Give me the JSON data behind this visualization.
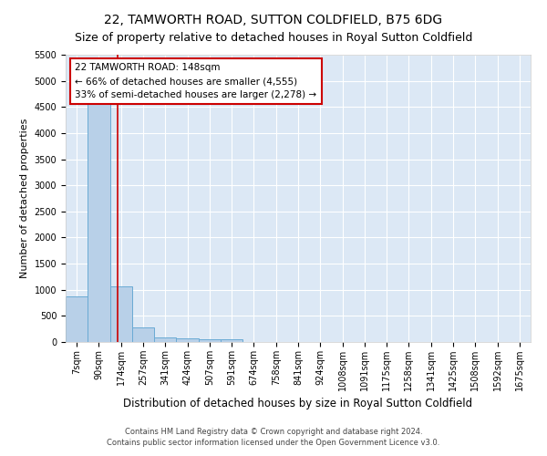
{
  "title": "22, TAMWORTH ROAD, SUTTON COLDFIELD, B75 6DG",
  "subtitle": "Size of property relative to detached houses in Royal Sutton Coldfield",
  "xlabel": "Distribution of detached houses by size in Royal Sutton Coldfield",
  "ylabel": "Number of detached properties",
  "footnote1": "Contains HM Land Registry data © Crown copyright and database right 2024.",
  "footnote2": "Contains public sector information licensed under the Open Government Licence v3.0.",
  "bar_labels": [
    "7sqm",
    "90sqm",
    "174sqm",
    "257sqm",
    "341sqm",
    "424sqm",
    "507sqm",
    "591sqm",
    "674sqm",
    "758sqm",
    "841sqm",
    "924sqm",
    "1008sqm",
    "1091sqm",
    "1175sqm",
    "1258sqm",
    "1341sqm",
    "1425sqm",
    "1508sqm",
    "1592sqm",
    "1675sqm"
  ],
  "bar_values": [
    880,
    4555,
    1060,
    280,
    90,
    75,
    55,
    55,
    0,
    0,
    0,
    0,
    0,
    0,
    0,
    0,
    0,
    0,
    0,
    0,
    0
  ],
  "bar_color": "#b8d0e8",
  "bar_edge_color": "#6aaad4",
  "vline_x": 1.85,
  "vline_color": "#cc0000",
  "annotation_title": "22 TAMWORTH ROAD: 148sqm",
  "annotation_line1": "← 66% of detached houses are smaller (4,555)",
  "annotation_line2": "33% of semi-detached houses are larger (2,278) →",
  "annotation_box_color": "#cc0000",
  "ylim": [
    0,
    5500
  ],
  "yticks": [
    0,
    500,
    1000,
    1500,
    2000,
    2500,
    3000,
    3500,
    4000,
    4500,
    5000,
    5500
  ],
  "bg_color": "#dce8f5",
  "grid_color": "#ffffff",
  "title_fontsize": 10,
  "subtitle_fontsize": 9,
  "ylabel_fontsize": 8,
  "xlabel_fontsize": 8.5,
  "tick_fontsize": 7,
  "annot_fontsize": 7.5
}
